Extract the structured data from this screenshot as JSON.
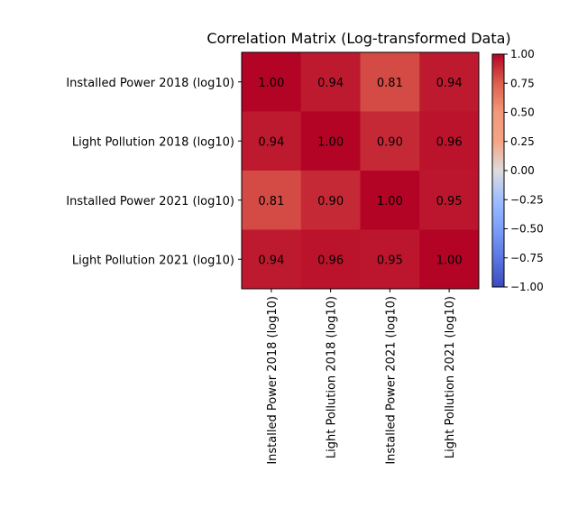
{
  "chart_data": {
    "type": "heatmap",
    "title": "Correlation Matrix (Log-transformed Data)",
    "row_labels": [
      "Installed Power 2018 (log10)",
      "Light Pollution 2018 (log10)",
      "Installed Power 2021 (log10)",
      "Light Pollution 2021 (log10)"
    ],
    "col_labels": [
      "Installed Power 2018 (log10)",
      "Light Pollution 2018 (log10)",
      "Installed Power 2021 (log10)",
      "Light Pollution 2021 (log10)"
    ],
    "values": [
      [
        1.0,
        0.94,
        0.81,
        0.94
      ],
      [
        0.94,
        1.0,
        0.9,
        0.96
      ],
      [
        0.81,
        0.9,
        1.0,
        0.95
      ],
      [
        0.94,
        0.96,
        0.95,
        1.0
      ]
    ],
    "cell_labels": [
      [
        "1.00",
        "0.94",
        "0.81",
        "0.94"
      ],
      [
        "0.94",
        "1.00",
        "0.90",
        "0.96"
      ],
      [
        "0.81",
        "0.90",
        "1.00",
        "0.95"
      ],
      [
        "0.94",
        "0.96",
        "0.95",
        "1.00"
      ]
    ],
    "colormap": "coolwarm",
    "colorbar": {
      "range": [
        -1.0,
        1.0
      ],
      "ticks": [
        1.0,
        0.75,
        0.5,
        0.25,
        0.0,
        -0.25,
        -0.5,
        -0.75,
        -1.0
      ],
      "tick_labels": [
        "1.00",
        "0.75",
        "0.50",
        "0.25",
        "0.00",
        "−0.25",
        "−0.50",
        "−0.75",
        "−1.00"
      ]
    }
  }
}
